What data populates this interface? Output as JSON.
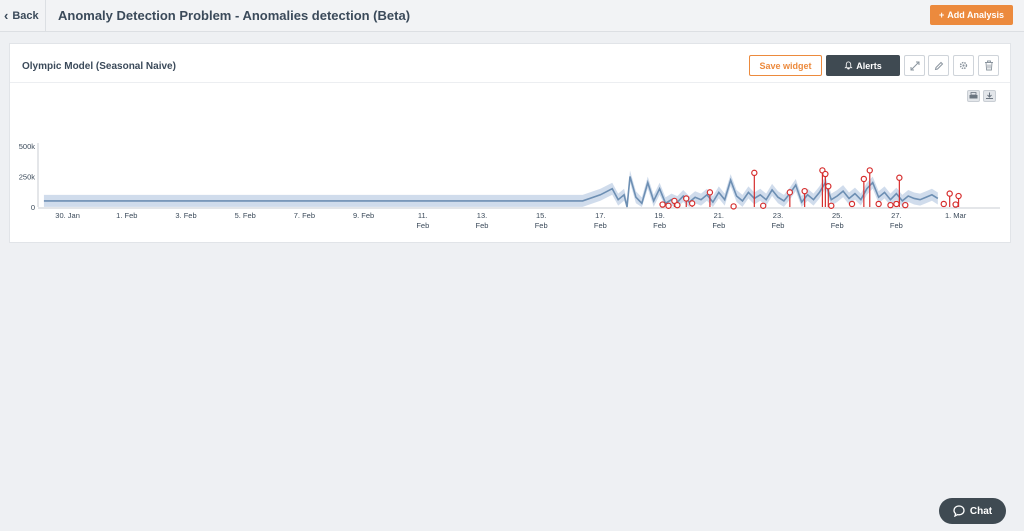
{
  "header": {
    "back_label": "Back",
    "title": "Anomaly Detection Problem - Anomalies detection (Beta)",
    "add_analysis_label": "Add Analysis"
  },
  "widget": {
    "title": "Olympic Model (Seasonal Naive)",
    "save_label": "Save widget",
    "alerts_label": "Alerts",
    "icons": [
      "expand-icon",
      "pencil-icon",
      "gear-icon",
      "trash-icon",
      "print-icon",
      "download-icon"
    ]
  },
  "chat": {
    "label": "Chat"
  },
  "colors": {
    "accent": "#ec8a3d",
    "dark_button": "#3f4a52",
    "series_line": "#6d8fb3",
    "band": "#a9c0dc",
    "anomaly": "#d62d2d"
  },
  "chart_data": {
    "type": "line",
    "x_tick_labels": [
      [
        "30. Jan"
      ],
      [
        "1. Feb"
      ],
      [
        "3. Feb"
      ],
      [
        "5. Feb"
      ],
      [
        "7. Feb"
      ],
      [
        "9. Feb"
      ],
      [
        "11.",
        "Feb"
      ],
      [
        "13.",
        "Feb"
      ],
      [
        "15.",
        "Feb"
      ],
      [
        "17.",
        "Feb"
      ],
      [
        "19.",
        "Feb"
      ],
      [
        "21.",
        "Feb"
      ],
      [
        "23.",
        "Feb"
      ],
      [
        "25.",
        "Feb"
      ],
      [
        "27.",
        "Feb"
      ],
      [
        "1. Mar"
      ]
    ],
    "y_tick_labels": [
      "500k",
      "250k",
      "0"
    ],
    "ylim": [
      0,
      500000
    ],
    "xlim_days": [
      -1,
      31.5
    ],
    "grid": false,
    "series": [
      {
        "x": [
          -0.8,
          17.4,
          18.0,
          18.4,
          18.6,
          18.8,
          18.9,
          19.0,
          19.2,
          19.4,
          19.6,
          19.8,
          20.0,
          20.2,
          20.4,
          20.6,
          20.8,
          21.0,
          21.2,
          21.4,
          21.6,
          21.8,
          22.0,
          22.2,
          22.4,
          22.6,
          22.8,
          23.0,
          23.2,
          23.4,
          23.6,
          23.8,
          24.0,
          24.2,
          24.4,
          24.6,
          24.8,
          25.0,
          25.2,
          25.4,
          25.6,
          25.8,
          26.0,
          26.2,
          26.4,
          26.6,
          26.8,
          27.0,
          27.2,
          27.4,
          27.6,
          27.8,
          28.0,
          28.2,
          28.4,
          28.6,
          28.8,
          29.0,
          29.2,
          29.4
        ],
        "values": [
          50000,
          50000,
          100000,
          150000,
          60000,
          100000,
          0,
          250000,
          80000,
          30000,
          200000,
          50000,
          150000,
          30000,
          60000,
          40000,
          90000,
          40000,
          80000,
          60000,
          100000,
          40000,
          120000,
          60000,
          220000,
          90000,
          50000,
          120000,
          70000,
          100000,
          60000,
          140000,
          80000,
          50000,
          110000,
          180000,
          40000,
          100000,
          60000,
          120000,
          200000,
          60000,
          90000,
          130000,
          70000,
          110000,
          60000,
          150000,
          200000,
          80000,
          120000,
          60000,
          110000,
          50000,
          90000,
          70000,
          60000,
          80000,
          100000,
          70000
        ]
      }
    ],
    "anomalies": [
      {
        "x": 20.1,
        "y": 20000
      },
      {
        "x": 20.3,
        "y": 10000
      },
      {
        "x": 20.5,
        "y": 50000
      },
      {
        "x": 20.6,
        "y": 15000
      },
      {
        "x": 20.9,
        "y": 70000
      },
      {
        "x": 21.1,
        "y": 30000
      },
      {
        "x": 21.7,
        "y": 120000
      },
      {
        "x": 22.5,
        "y": 5000
      },
      {
        "x": 23.2,
        "y": 280000
      },
      {
        "x": 23.5,
        "y": 10000
      },
      {
        "x": 24.4,
        "y": 120000
      },
      {
        "x": 24.9,
        "y": 130000
      },
      {
        "x": 25.5,
        "y": 300000
      },
      {
        "x": 25.6,
        "y": 270000
      },
      {
        "x": 25.7,
        "y": 170000
      },
      {
        "x": 25.8,
        "y": 10000
      },
      {
        "x": 26.5,
        "y": 25000
      },
      {
        "x": 26.9,
        "y": 230000
      },
      {
        "x": 27.1,
        "y": 300000
      },
      {
        "x": 27.4,
        "y": 25000
      },
      {
        "x": 27.8,
        "y": 15000
      },
      {
        "x": 28.0,
        "y": 25000
      },
      {
        "x": 28.1,
        "y": 240000
      },
      {
        "x": 28.3,
        "y": 15000
      },
      {
        "x": 29.6,
        "y": 25000
      },
      {
        "x": 29.8,
        "y": 110000
      },
      {
        "x": 30.0,
        "y": 20000
      },
      {
        "x": 30.1,
        "y": 90000
      }
    ]
  }
}
